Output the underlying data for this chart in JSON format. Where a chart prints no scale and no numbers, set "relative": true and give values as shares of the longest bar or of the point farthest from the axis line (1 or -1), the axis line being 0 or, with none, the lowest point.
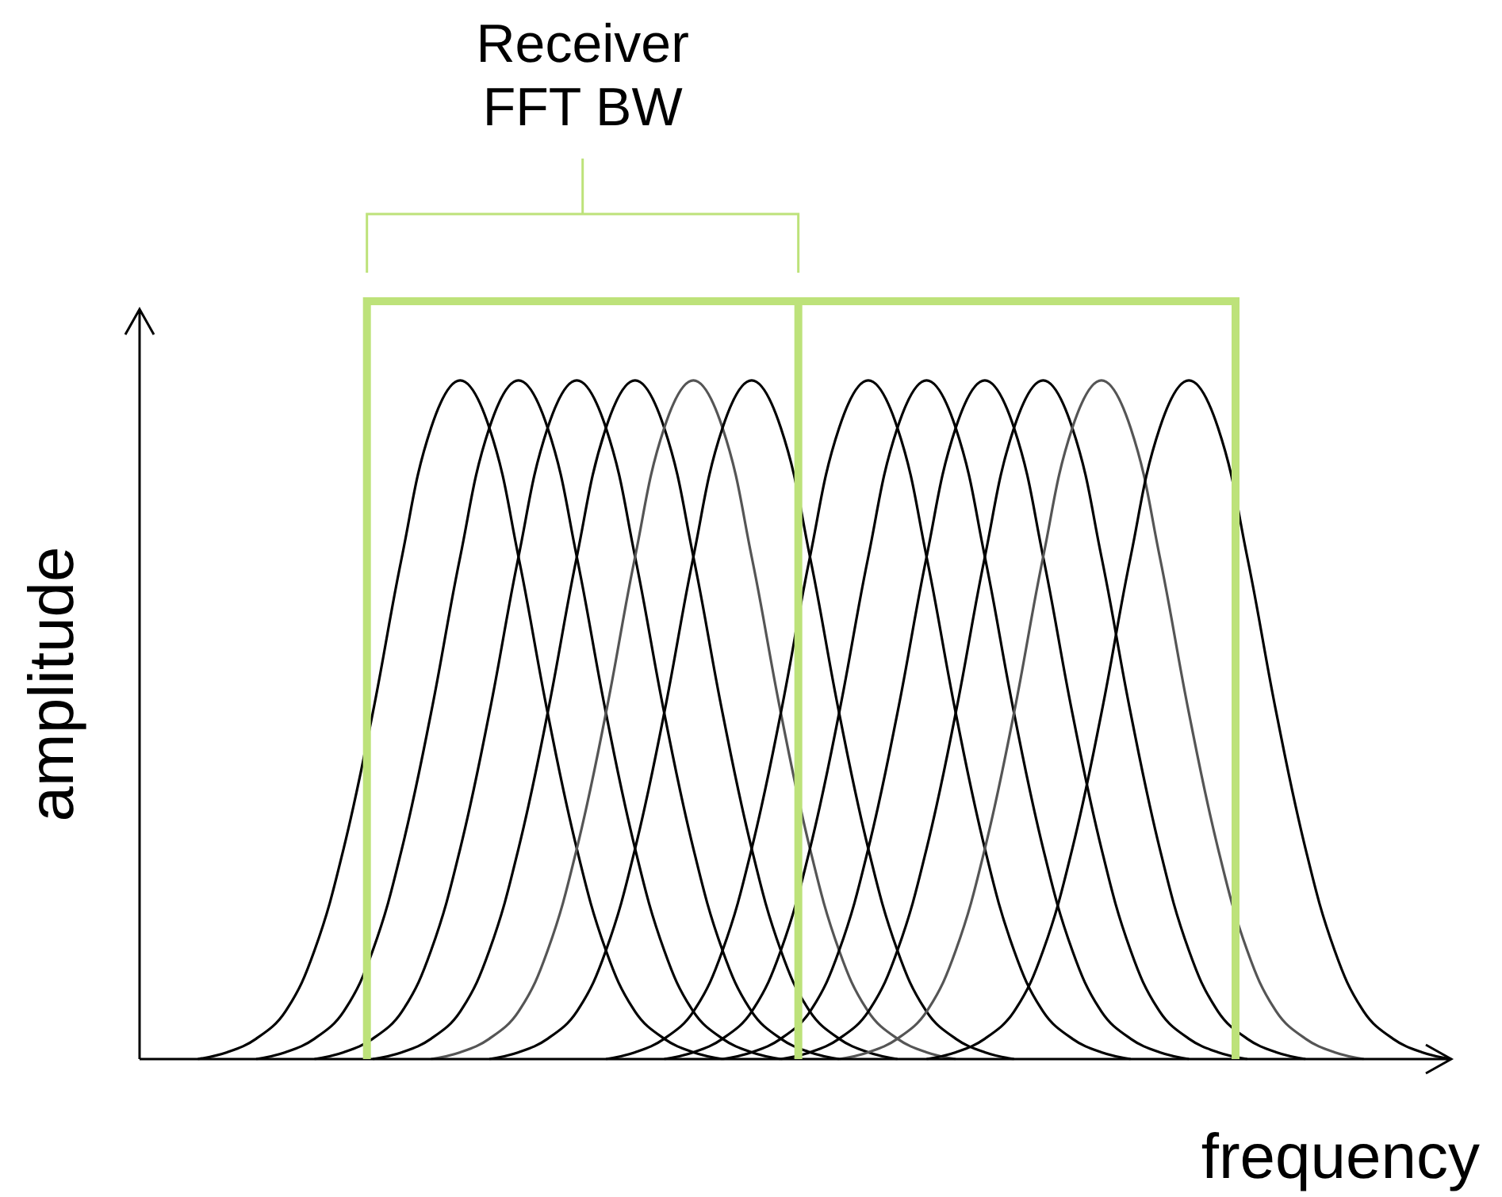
{
  "chart_data": {
    "type": "line",
    "relative": true,
    "xlabel": "frequency",
    "ylabel": "amplitude",
    "annotations": [
      "Receiver FFT BW"
    ],
    "marker": "none",
    "line_style": "solid",
    "grid": false,
    "tick_labels": false,
    "categories": [
      null,
      null,
      null,
      null,
      null,
      null,
      null,
      null,
      null,
      null,
      null,
      null,
      null,
      null,
      null,
      null,
      null,
      null,
      null,
      null,
      null,
      null,
      null,
      null,
      null,
      null,
      null,
      null,
      null,
      null,
      null,
      null,
      null,
      null,
      null,
      null,
      null,
      null,
      null,
      null,
      null,
      null,
      null,
      null,
      null,
      null
    ],
    "series": [
      {
        "color": "#000000",
        "values": [
          null,
          null,
          0,
          0.01,
          0.03,
          0.07,
          0.16,
          0.31,
          0.51,
          0.74,
          0.93,
          1,
          0.93,
          0.74,
          0.51,
          0.31,
          0.16,
          0.07,
          0.03,
          0.01,
          0,
          null,
          null,
          null,
          null,
          null,
          null,
          null,
          null,
          null,
          null,
          null,
          null,
          null,
          null,
          null,
          null,
          null,
          null,
          null,
          null,
          null,
          null,
          null,
          null,
          null
        ]
      },
      {
        "color": "#000000",
        "values": [
          null,
          null,
          null,
          null,
          0,
          0.01,
          0.03,
          0.07,
          0.16,
          0.31,
          0.51,
          0.74,
          0.93,
          1,
          0.93,
          0.74,
          0.51,
          0.31,
          0.16,
          0.07,
          0.03,
          0.01,
          0,
          null,
          null,
          null,
          null,
          null,
          null,
          null,
          null,
          null,
          null,
          null,
          null,
          null,
          null,
          null,
          null,
          null,
          null,
          null,
          null,
          null,
          null,
          null
        ]
      },
      {
        "color": "#000000",
        "values": [
          null,
          null,
          null,
          null,
          null,
          null,
          0,
          0.01,
          0.03,
          0.07,
          0.16,
          0.31,
          0.51,
          0.74,
          0.93,
          1,
          0.93,
          0.74,
          0.51,
          0.31,
          0.16,
          0.07,
          0.03,
          0.01,
          0,
          null,
          null,
          null,
          null,
          null,
          null,
          null,
          null,
          null,
          null,
          null,
          null,
          null,
          null,
          null,
          null,
          null,
          null,
          null,
          null,
          null
        ]
      },
      {
        "color": "#000000",
        "values": [
          null,
          null,
          null,
          null,
          null,
          null,
          null,
          null,
          0,
          0.01,
          0.03,
          0.07,
          0.16,
          0.31,
          0.51,
          0.74,
          0.93,
          1,
          0.93,
          0.74,
          0.51,
          0.31,
          0.16,
          0.07,
          0.03,
          0.01,
          0,
          null,
          null,
          null,
          null,
          null,
          null,
          null,
          null,
          null,
          null,
          null,
          null,
          null,
          null,
          null,
          null,
          null,
          null,
          null
        ]
      },
      {
        "color": "#555555",
        "values": [
          null,
          null,
          null,
          null,
          null,
          null,
          null,
          null,
          null,
          null,
          0,
          0.01,
          0.03,
          0.07,
          0.16,
          0.31,
          0.51,
          0.74,
          0.93,
          1,
          0.93,
          0.74,
          0.51,
          0.31,
          0.16,
          0.07,
          0.03,
          0.01,
          0,
          null,
          null,
          null,
          null,
          null,
          null,
          null,
          null,
          null,
          null,
          null,
          null,
          null,
          null,
          null,
          null,
          null
        ]
      },
      {
        "color": "#000000",
        "values": [
          null,
          null,
          null,
          null,
          null,
          null,
          null,
          null,
          null,
          null,
          null,
          null,
          0,
          0.01,
          0.03,
          0.07,
          0.16,
          0.31,
          0.51,
          0.74,
          0.93,
          1,
          0.93,
          0.74,
          0.51,
          0.31,
          0.16,
          0.07,
          0.03,
          0.01,
          0,
          null,
          null,
          null,
          null,
          null,
          null,
          null,
          null,
          null,
          null,
          null,
          null,
          null,
          null,
          null
        ]
      },
      {
        "color": "#000000",
        "values": [
          null,
          null,
          null,
          null,
          null,
          null,
          null,
          null,
          null,
          null,
          null,
          null,
          null,
          null,
          null,
          null,
          0,
          0.01,
          0.03,
          0.07,
          0.16,
          0.31,
          0.51,
          0.74,
          0.93,
          1,
          0.93,
          0.74,
          0.51,
          0.31,
          0.16,
          0.07,
          0.03,
          0.01,
          0,
          null,
          null,
          null,
          null,
          null,
          null,
          null,
          null,
          null,
          null,
          null
        ]
      },
      {
        "color": "#000000",
        "values": [
          null,
          null,
          null,
          null,
          null,
          null,
          null,
          null,
          null,
          null,
          null,
          null,
          null,
          null,
          null,
          null,
          null,
          null,
          0,
          0.01,
          0.03,
          0.07,
          0.16,
          0.31,
          0.51,
          0.74,
          0.93,
          1,
          0.93,
          0.74,
          0.51,
          0.31,
          0.16,
          0.07,
          0.03,
          0.01,
          0,
          null,
          null,
          null,
          null,
          null,
          null,
          null,
          null,
          null
        ]
      },
      {
        "color": "#000000",
        "values": [
          null,
          null,
          null,
          null,
          null,
          null,
          null,
          null,
          null,
          null,
          null,
          null,
          null,
          null,
          null,
          null,
          null,
          null,
          null,
          null,
          0,
          0.01,
          0.03,
          0.07,
          0.16,
          0.31,
          0.51,
          0.74,
          0.93,
          1,
          0.93,
          0.74,
          0.51,
          0.31,
          0.16,
          0.07,
          0.03,
          0.01,
          0,
          null,
          null,
          null,
          null,
          null,
          null,
          null
        ]
      },
      {
        "color": "#000000",
        "values": [
          null,
          null,
          null,
          null,
          null,
          null,
          null,
          null,
          null,
          null,
          null,
          null,
          null,
          null,
          null,
          null,
          null,
          null,
          null,
          null,
          null,
          null,
          0,
          0.01,
          0.03,
          0.07,
          0.16,
          0.31,
          0.51,
          0.74,
          0.93,
          1,
          0.93,
          0.74,
          0.51,
          0.31,
          0.16,
          0.07,
          0.03,
          0.01,
          0,
          null,
          null,
          null,
          null,
          null
        ]
      },
      {
        "color": "#555555",
        "values": [
          null,
          null,
          null,
          null,
          null,
          null,
          null,
          null,
          null,
          null,
          null,
          null,
          null,
          null,
          null,
          null,
          null,
          null,
          null,
          null,
          null,
          null,
          null,
          null,
          0,
          0.01,
          0.03,
          0.07,
          0.16,
          0.31,
          0.51,
          0.74,
          0.93,
          1,
          0.93,
          0.74,
          0.51,
          0.31,
          0.16,
          0.07,
          0.03,
          0.01,
          0,
          null,
          null,
          null
        ]
      },
      {
        "color": "#000000",
        "values": [
          null,
          null,
          null,
          null,
          null,
          null,
          null,
          null,
          null,
          null,
          null,
          null,
          null,
          null,
          null,
          null,
          null,
          null,
          null,
          null,
          null,
          null,
          null,
          null,
          null,
          null,
          null,
          0,
          0.01,
          0.03,
          0.07,
          0.16,
          0.31,
          0.51,
          0.74,
          0.93,
          1,
          0.93,
          0.74,
          0.51,
          0.31,
          0.16,
          0.07,
          0.03,
          0.01,
          0
        ]
      }
    ]
  }
}
